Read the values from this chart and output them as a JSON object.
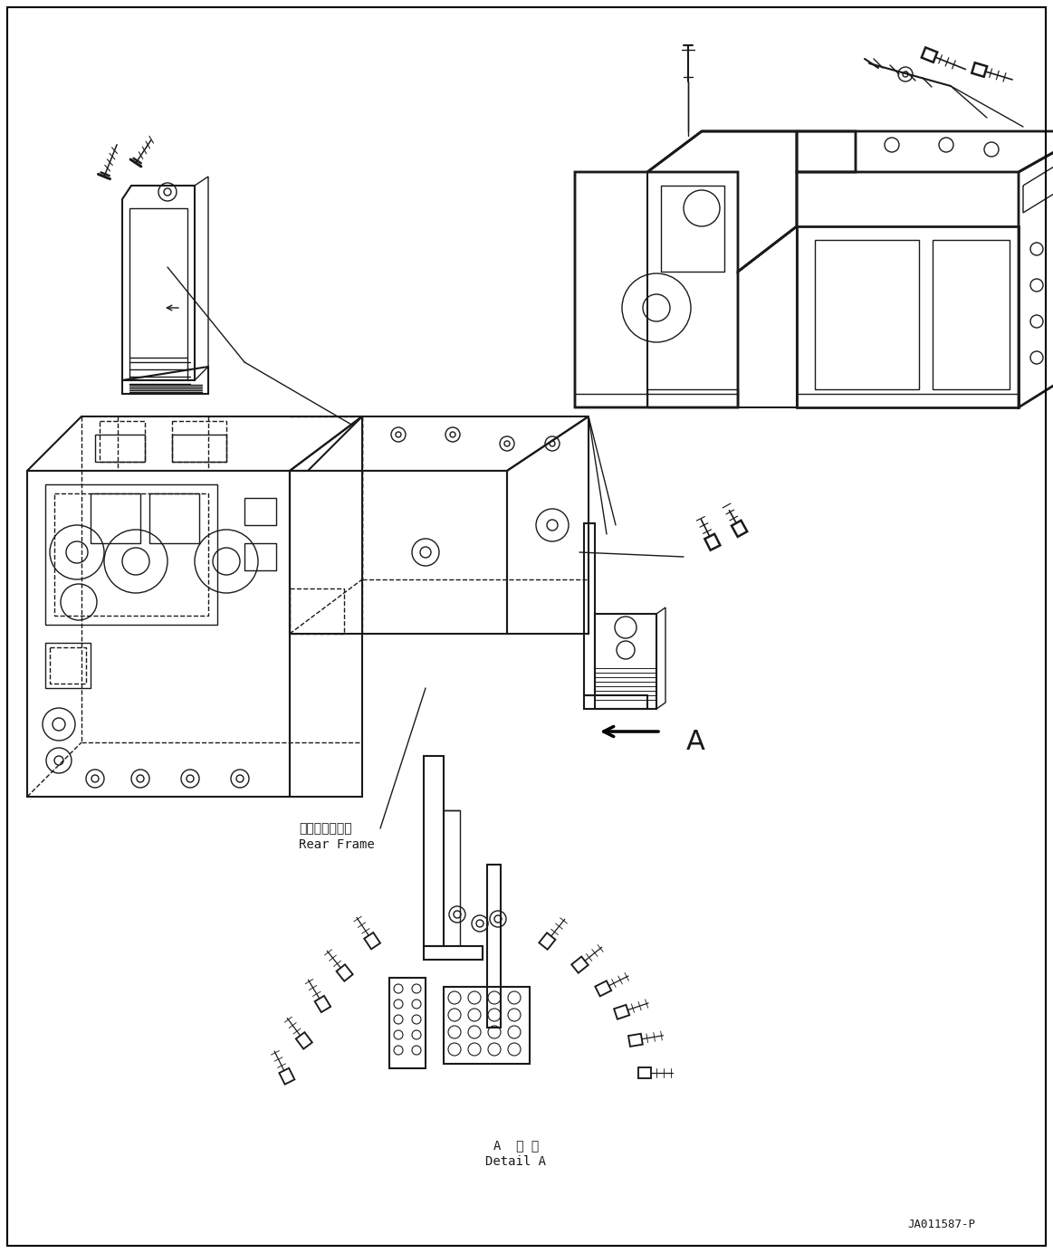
{
  "background_color": "#ffffff",
  "line_color": "#1a1a1a",
  "fig_width": 11.63,
  "fig_height": 13.84,
  "dpi": 100,
  "part_number": "JA011587-P",
  "rear_frame_label_jp": "リヤーフレーム",
  "rear_frame_label_en": "Rear Frame",
  "detail_a_label_jp": "A  詳 細",
  "detail_a_label_en": "Detail A",
  "label_A": "A"
}
